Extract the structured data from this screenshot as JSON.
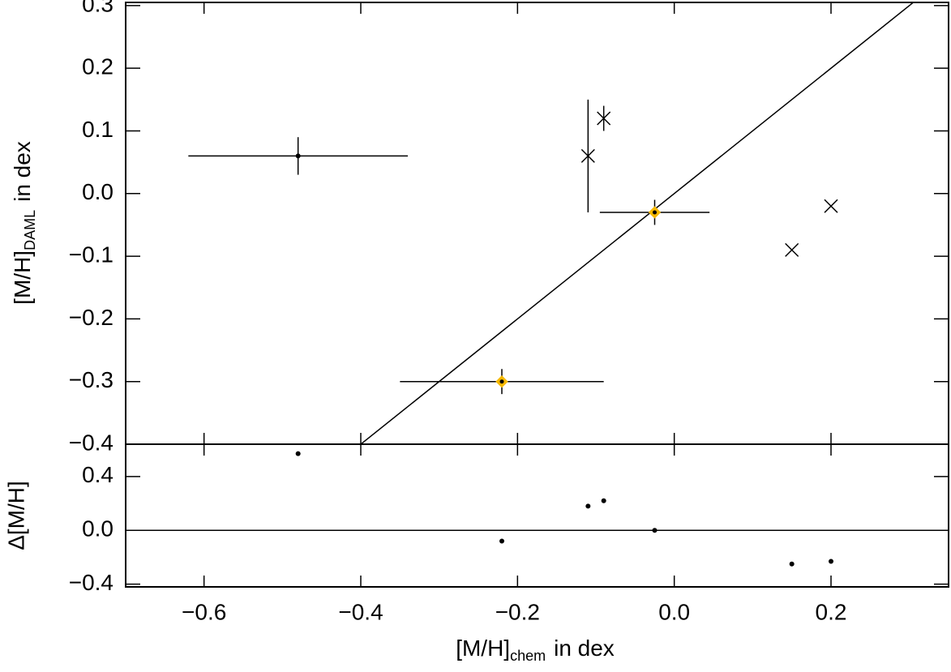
{
  "chart_data": [
    {
      "type": "scatter",
      "ylabel": {
        "main": "[M/H]",
        "sub": "DAML",
        "rest": "in dex"
      },
      "xlim": [
        -0.7,
        0.35
      ],
      "ylim": [
        -0.4,
        0.305
      ],
      "yticks": [
        0.3,
        0.2,
        0.1,
        {
          "value": 0,
          "label": "0.0"
        },
        {
          "value": -0.1,
          "label": "−0.1"
        },
        {
          "value": -0.2,
          "label": "−0.2"
        },
        {
          "value": -0.3,
          "label": "−0.3"
        },
        {
          "value": -0.4,
          "label": "−0.4"
        }
      ],
      "one_to_one_line": true,
      "highlight_color": "#f5b800",
      "points": [
        {
          "x": -0.48,
          "y": 0.06,
          "xerr": 0.14,
          "yerr": 0.03,
          "marker": "dot"
        },
        {
          "x": -0.22,
          "y": -0.3,
          "xerr": 0.13,
          "yerr": 0.02,
          "marker": "diamond"
        },
        {
          "x": -0.025,
          "y": -0.03,
          "xerr": 0.07,
          "yerr": 0.02,
          "marker": "diamond"
        },
        {
          "x": -0.11,
          "y": 0.06,
          "yerr": 0.09,
          "marker": "cross"
        },
        {
          "x": -0.09,
          "y": 0.12,
          "yerr": 0.02,
          "marker": "cross"
        },
        {
          "x": 0.15,
          "y": -0.09,
          "marker": "cross"
        },
        {
          "x": 0.2,
          "y": -0.02,
          "marker": "cross"
        }
      ]
    },
    {
      "type": "scatter",
      "ylabel": "Δ[M/H]",
      "xlabel": {
        "main": "[M/H]",
        "sub": "chem",
        "rest": "in dex"
      },
      "xlim": [
        -0.7,
        0.35
      ],
      "ylim": [
        -0.42,
        0.64
      ],
      "xticks": [
        {
          "value": -0.6,
          "label": "−0.6"
        },
        {
          "value": -0.4,
          "label": "−0.4"
        },
        {
          "value": -0.2,
          "label": "−0.2"
        },
        {
          "value": 0,
          "label": "0.0"
        },
        0.2
      ],
      "yticks": [
        0.4,
        {
          "value": 0,
          "label": "0.0"
        },
        {
          "value": -0.4,
          "label": "−0.4"
        }
      ],
      "reference_y": 0,
      "x": [
        -0.48,
        -0.22,
        -0.025,
        -0.11,
        -0.09,
        0.15,
        0.2
      ],
      "y": [
        0.57,
        -0.08,
        0.0,
        0.18,
        0.22,
        -0.25,
        -0.23
      ]
    }
  ]
}
